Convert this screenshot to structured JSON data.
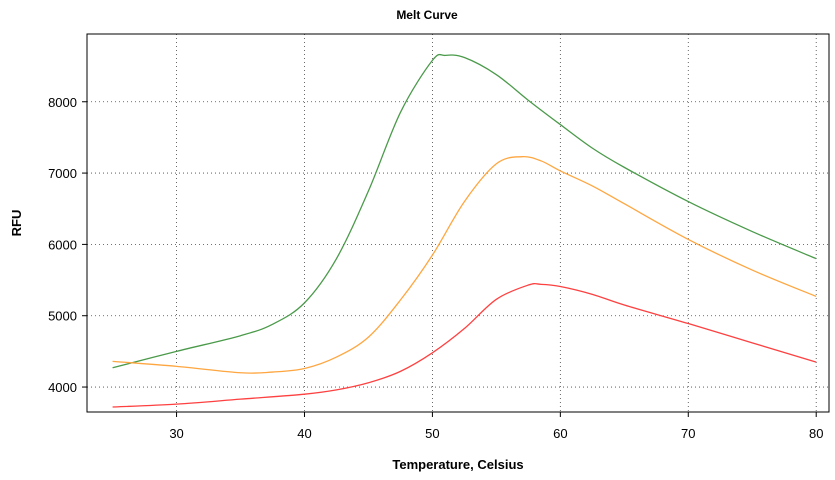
{
  "chart_data": {
    "type": "line",
    "title": "Melt Curve",
    "xlabel": "Temperature, Celsius",
    "ylabel": "RFU",
    "xlim": [
      23,
      81
    ],
    "ylim": [
      3650,
      8950
    ],
    "x_ticks": [
      30,
      40,
      50,
      60,
      70,
      80
    ],
    "y_ticks": [
      4000,
      5000,
      6000,
      7000,
      8000
    ],
    "grid": true,
    "series": [
      {
        "color": "#4a9a4a",
        "x": [
          25,
          30,
          35,
          37.5,
          40,
          42.5,
          45,
          47.5,
          50,
          51,
          52.5,
          55,
          57.5,
          60,
          62.5,
          65,
          70,
          75,
          80
        ],
        "values": [
          4270,
          4500,
          4720,
          4880,
          5180,
          5800,
          6750,
          7850,
          8580,
          8650,
          8620,
          8380,
          8020,
          7680,
          7350,
          7080,
          6600,
          6180,
          5800
        ]
      },
      {
        "color": "#ffa640",
        "x": [
          25,
          30,
          35,
          37.5,
          40,
          42.5,
          45,
          47.5,
          50,
          52.5,
          55,
          57,
          58.5,
          60,
          62.5,
          65,
          70,
          75,
          80
        ],
        "values": [
          4360,
          4290,
          4200,
          4210,
          4260,
          4420,
          4700,
          5220,
          5850,
          6600,
          7130,
          7230,
          7170,
          7030,
          6820,
          6570,
          6070,
          5640,
          5270
        ]
      },
      {
        "color": "#ff4040",
        "x": [
          25,
          30,
          35,
          40,
          42.5,
          45,
          47.5,
          50,
          52.5,
          55,
          57.5,
          58.5,
          60,
          62.5,
          65,
          70,
          75,
          80
        ],
        "values": [
          3720,
          3760,
          3830,
          3900,
          3960,
          4060,
          4220,
          4480,
          4820,
          5230,
          5430,
          5440,
          5410,
          5300,
          5150,
          4890,
          4620,
          4350
        ]
      }
    ]
  }
}
